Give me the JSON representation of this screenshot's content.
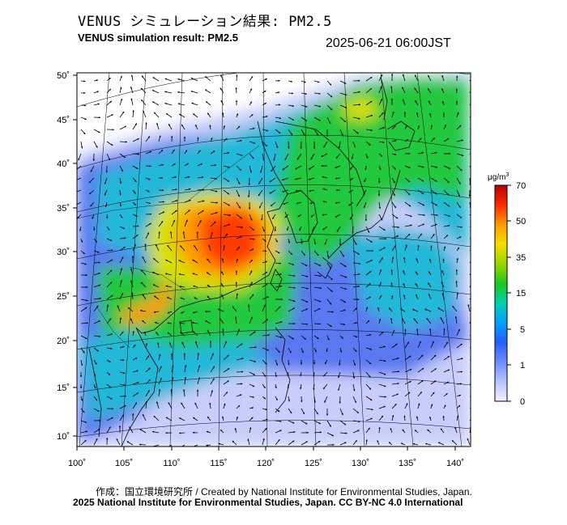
{
  "header": {
    "title_jp": "VENUS シミュレーション結果: PM2.5",
    "title_en": "VENUS simulation result: PM2.5",
    "timestamp": "2025-06-21 06:00JST"
  },
  "map": {
    "lon_ticks": [
      "100˚",
      "105˚",
      "110˚",
      "115˚",
      "120˚",
      "125˚",
      "130˚",
      "135˚",
      "140˚"
    ],
    "lat_ticks": [
      "50˚",
      "45˚",
      "40˚",
      "35˚",
      "30˚",
      "25˚",
      "20˚",
      "15˚",
      "10˚"
    ]
  },
  "colorbar": {
    "unit": "μg/m",
    "unit_superscript": "3",
    "labels": [
      "70",
      "50",
      "35",
      "15",
      "5",
      "1",
      "0"
    ],
    "colors": [
      "#b40000",
      "#ff2a00",
      "#ff9a00",
      "#f5e000",
      "#9ad600",
      "#1ec81e",
      "#00d0b0",
      "#00a0ff",
      "#2a5cff",
      "#6f8cff",
      "#b8c4ff",
      "#f3f3ff"
    ]
  },
  "field_colors": {
    "ocean_low": "#c8cdfa",
    "low": "#5a78f0",
    "mid": "#24b8d8",
    "green": "#22c83c",
    "yellow": "#d8e000",
    "orange": "#ff9a00",
    "red": "#ff3a00"
  },
  "footer": {
    "credit_line": "作成：国立環境研究所 / Created by National Institute for Environmental Studies, Japan.",
    "copyright_line": "2025 National Institute for Environmental Studies, Japan. CC BY-NC 4.0 International"
  }
}
